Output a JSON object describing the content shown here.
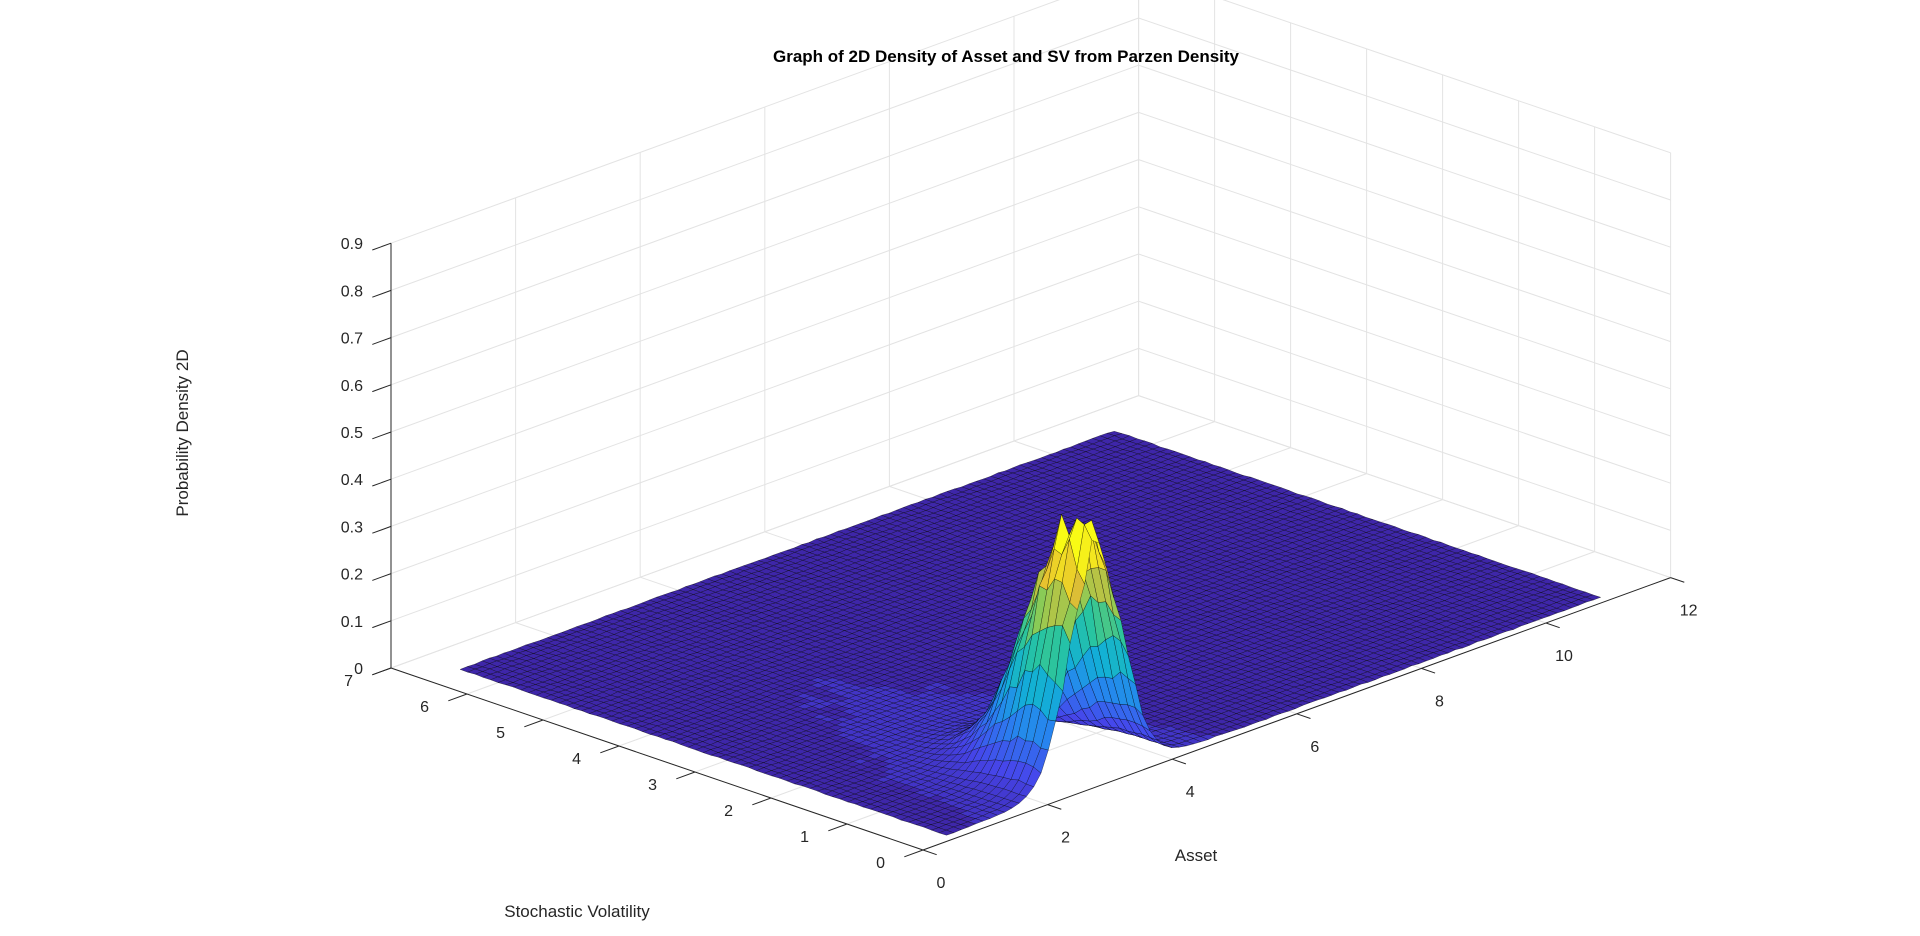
{
  "chart_data": {
    "type": "surface",
    "title": "Graph of 2D Density of Asset and SV from Parzen Density",
    "xlabel": "Asset",
    "ylabel": "Stochastic Volatility",
    "zlabel": "Probability Density 2D",
    "xlim": [
      0,
      12
    ],
    "ylim": [
      0,
      7
    ],
    "zlim": [
      0,
      0.9
    ],
    "x_ticks": [
      "0",
      "2",
      "4",
      "6",
      "8",
      "10",
      "12"
    ],
    "y_ticks": [
      "0",
      "1",
      "2",
      "3",
      "4",
      "5",
      "6",
      "7"
    ],
    "z_ticks": [
      "0",
      "0.1",
      "0.2",
      "0.3",
      "0.4",
      "0.5",
      "0.6",
      "0.7",
      "0.8",
      "0.9"
    ],
    "grid": true,
    "colormap": "parula",
    "surface_extent": {
      "x": [
        0.5,
        11
      ],
      "y": [
        0.1,
        6.5
      ]
    },
    "peak": {
      "asset": 2.9,
      "volatility": 0.35,
      "density": 0.53
    },
    "colors": {
      "low": "#3e26a8",
      "mid": "#12b0d6",
      "high": "#f9fb15",
      "edge": "#000000"
    }
  }
}
